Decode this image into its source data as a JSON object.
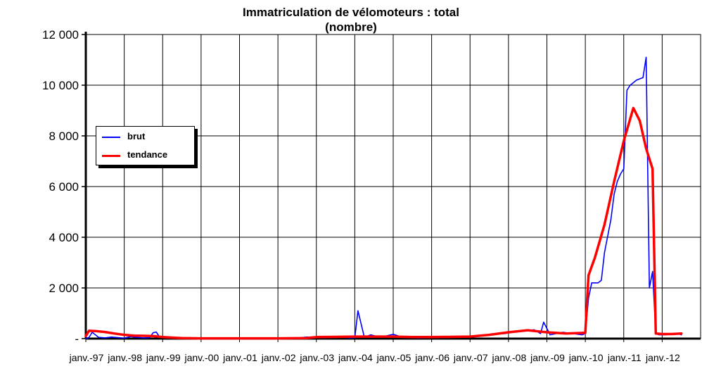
{
  "chart_data": {
    "type": "line",
    "title": "Immatriculation de vélomoteurs : total",
    "subtitle": "(nombre)",
    "xlabel": "",
    "ylabel": "",
    "ylim": [
      0,
      12000
    ],
    "yticks": [
      {
        "value": 0,
        "label": "-"
      },
      {
        "value": 2000,
        "label": "2 000"
      },
      {
        "value": 4000,
        "label": "4 000"
      },
      {
        "value": 6000,
        "label": "6 000"
      },
      {
        "value": 8000,
        "label": "8 000"
      },
      {
        "value": 10000,
        "label": "10 000"
      },
      {
        "value": 12000,
        "label": "12 000"
      }
    ],
    "xticks": [
      "janv.-97",
      "janv.-98",
      "janv.-99",
      "janv.-00",
      "janv.-01",
      "janv.-02",
      "janv.-03",
      "janv.-04",
      "janv.-05",
      "janv.-06",
      "janv.-07",
      "janv.-08",
      "janv.-09",
      "janv.-10",
      "janv.-11",
      "janv.-12"
    ],
    "grid": true,
    "legend": "left",
    "series": [
      {
        "name": "brut",
        "color": "#0000ff",
        "points": [
          [
            "1997-01",
            0
          ],
          [
            "1997-02",
            50
          ],
          [
            "1997-03",
            250
          ],
          [
            "1997-04",
            150
          ],
          [
            "1997-05",
            50
          ],
          [
            "1997-07",
            30
          ],
          [
            "1997-09",
            60
          ],
          [
            "1997-11",
            40
          ],
          [
            "1998-01",
            20
          ],
          [
            "1998-03",
            80
          ],
          [
            "1998-05",
            50
          ],
          [
            "1998-07",
            30
          ],
          [
            "1998-09",
            40
          ],
          [
            "1998-10",
            230
          ],
          [
            "1998-11",
            260
          ],
          [
            "1998-12",
            70
          ],
          [
            "1999-02",
            40
          ],
          [
            "1999-06",
            20
          ],
          [
            "2000-01",
            10
          ],
          [
            "2002-06",
            15
          ],
          [
            "2002-10",
            60
          ],
          [
            "2003-03",
            40
          ],
          [
            "2003-08",
            60
          ],
          [
            "2003-12",
            30
          ],
          [
            "2004-01",
            40
          ],
          [
            "2004-02",
            1100
          ],
          [
            "2004-04",
            50
          ],
          [
            "2004-06",
            150
          ],
          [
            "2004-09",
            50
          ],
          [
            "2005-01",
            170
          ],
          [
            "2005-04",
            50
          ],
          [
            "2005-09",
            30
          ],
          [
            "2006-06",
            50
          ],
          [
            "2007-01",
            60
          ],
          [
            "2007-06",
            150
          ],
          [
            "2007-12",
            200
          ],
          [
            "2008-03",
            280
          ],
          [
            "2008-06",
            300
          ],
          [
            "2008-09",
            350
          ],
          [
            "2008-11",
            200
          ],
          [
            "2008-12",
            650
          ],
          [
            "2009-02",
            150
          ],
          [
            "2009-06",
            250
          ],
          [
            "2009-09",
            200
          ],
          [
            "2009-12",
            150
          ],
          [
            "2010-01",
            200
          ],
          [
            "2010-02",
            1600
          ],
          [
            "2010-03",
            2200
          ],
          [
            "2010-05",
            2200
          ],
          [
            "2010-06",
            2300
          ],
          [
            "2010-07",
            3400
          ],
          [
            "2010-09",
            4700
          ],
          [
            "2010-10",
            5700
          ],
          [
            "2010-11",
            6200
          ],
          [
            "2010-12",
            6500
          ],
          [
            "2011-01",
            6700
          ],
          [
            "2011-02",
            9800
          ],
          [
            "2011-03",
            10000
          ],
          [
            "2011-05",
            10200
          ],
          [
            "2011-07",
            10300
          ],
          [
            "2011-08",
            11100
          ],
          [
            "2011-09",
            2000
          ],
          [
            "2011-10",
            2650
          ],
          [
            "2011-11",
            200
          ],
          [
            "2011-12",
            150
          ],
          [
            "2012-02",
            150
          ],
          [
            "2012-04",
            180
          ],
          [
            "2012-06",
            200
          ],
          [
            "2012-07",
            150
          ]
        ]
      },
      {
        "name": "tendance",
        "color": "#ff0000",
        "points": [
          [
            "1997-01",
            100
          ],
          [
            "1997-02",
            310
          ],
          [
            "1997-04",
            300
          ],
          [
            "1997-07",
            260
          ],
          [
            "1997-10",
            200
          ],
          [
            "1998-01",
            150
          ],
          [
            "1998-04",
            120
          ],
          [
            "1998-07",
            110
          ],
          [
            "1998-10",
            100
          ],
          [
            "1999-01",
            60
          ],
          [
            "1999-07",
            20
          ],
          [
            "2000-01",
            10
          ],
          [
            "2001-01",
            10
          ],
          [
            "2002-01",
            10
          ],
          [
            "2002-10",
            20
          ],
          [
            "2003-01",
            60
          ],
          [
            "2003-07",
            70
          ],
          [
            "2004-01",
            80
          ],
          [
            "2004-07",
            80
          ],
          [
            "2005-01",
            80
          ],
          [
            "2005-07",
            60
          ],
          [
            "2006-01",
            60
          ],
          [
            "2006-07",
            70
          ],
          [
            "2007-01",
            80
          ],
          [
            "2007-07",
            150
          ],
          [
            "2008-01",
            250
          ],
          [
            "2008-07",
            330
          ],
          [
            "2009-01",
            250
          ],
          [
            "2009-07",
            200
          ],
          [
            "2010-01",
            230
          ],
          [
            "2010-02",
            2500
          ],
          [
            "2010-04",
            3200
          ],
          [
            "2010-07",
            4500
          ],
          [
            "2010-10",
            6200
          ],
          [
            "2011-01",
            7800
          ],
          [
            "2011-04",
            9100
          ],
          [
            "2011-06",
            8600
          ],
          [
            "2011-08",
            7500
          ],
          [
            "2011-10",
            6700
          ],
          [
            "2011-11",
            200
          ],
          [
            "2012-01",
            180
          ],
          [
            "2012-04",
            180
          ],
          [
            "2012-07",
            200
          ]
        ]
      }
    ]
  }
}
